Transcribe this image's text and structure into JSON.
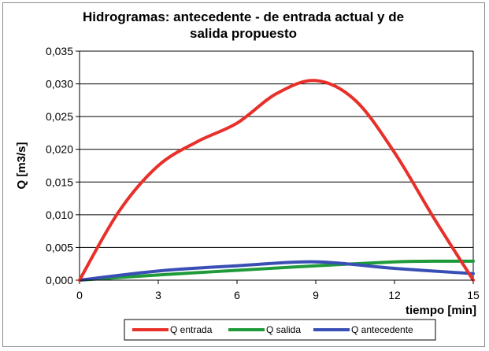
{
  "chart_data": {
    "type": "line",
    "title_lines": [
      "Hidrogramas: antecedente - de entrada actual y de",
      "salida propuesto"
    ],
    "xlabel": "tiempo [min]",
    "ylabel": "Q [m3/s]",
    "xlim": [
      0,
      15
    ],
    "ylim": [
      0,
      0.035
    ],
    "x_ticks": [
      0,
      3,
      6,
      9,
      12,
      15
    ],
    "x_tick_labels": [
      "0",
      "3",
      "6",
      "9",
      "12",
      "15"
    ],
    "y_ticks": [
      0,
      0.005,
      0.01,
      0.015,
      0.02,
      0.025,
      0.03,
      0.035
    ],
    "y_tick_labels": [
      "0,000",
      "0,005",
      "0,010",
      "0,015",
      "0,020",
      "0,025",
      "0,030",
      "0,035"
    ],
    "grid": "horizontal",
    "legend_position": "bottom",
    "series": [
      {
        "name": "Q entrada",
        "color": "#e8302a",
        "x": [
          0,
          1.5,
          3,
          4.5,
          6,
          7.5,
          9,
          10.5,
          12,
          13.5,
          15
        ],
        "y": [
          0,
          0.0105,
          0.0175,
          0.0212,
          0.024,
          0.0285,
          0.0305,
          0.0275,
          0.0195,
          0.0095,
          0
        ]
      },
      {
        "name": "Q salida",
        "color": "#1f9a3a",
        "x": [
          0,
          3,
          6,
          9,
          12,
          13.5,
          15
        ],
        "y": [
          0,
          0.0008,
          0.0015,
          0.0022,
          0.0028,
          0.0029,
          0.0029
        ]
      },
      {
        "name": "Q antecedente",
        "color": "#3a4fb5",
        "x": [
          0,
          3,
          6,
          9,
          12,
          15
        ],
        "y": [
          0,
          0.0014,
          0.0022,
          0.0028,
          0.0018,
          0.001
        ]
      }
    ]
  }
}
